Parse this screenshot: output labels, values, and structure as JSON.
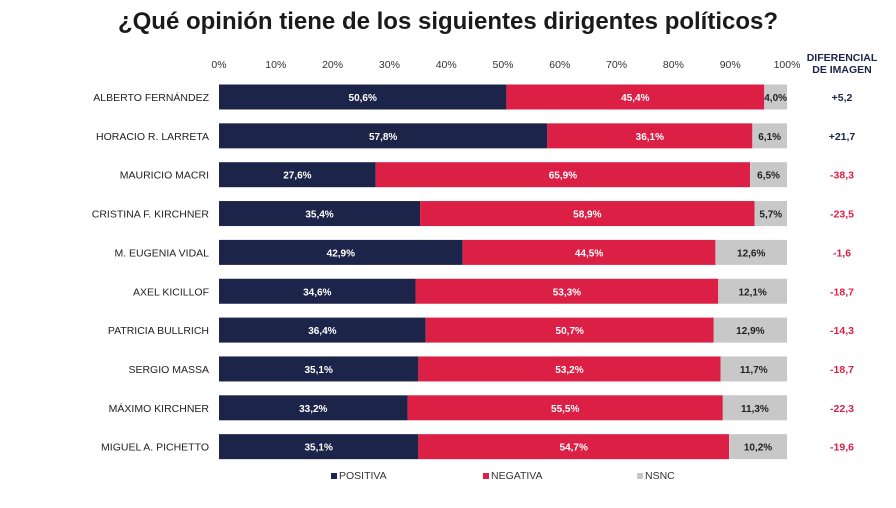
{
  "chart_data": {
    "type": "bar",
    "orientation": "horizontal",
    "stacked": true,
    "title": "¿Qué opinión tiene de los siguientes dirigentes políticos?",
    "xlim": [
      0,
      100
    ],
    "x_ticks": [
      "0%",
      "10%",
      "20%",
      "30%",
      "40%",
      "50%",
      "60%",
      "70%",
      "80%",
      "90%",
      "100%"
    ],
    "categories": [
      "ALBERTO FERNÁNDEZ",
      "HORACIO R. LARRETA",
      "MAURICIO MACRI",
      "CRISTINA F. KIRCHNER",
      "M. EUGENIA VIDAL",
      "AXEL KICILLOF",
      "PATRICIA BULLRICH",
      "SERGIO MASSA",
      "MÁXIMO KIRCHNER",
      "MIGUEL A. PICHETTO"
    ],
    "series": [
      {
        "name": "POSITIVA",
        "color": "#1c2449",
        "values": [
          50.6,
          57.8,
          27.6,
          35.4,
          42.9,
          34.6,
          36.4,
          35.1,
          33.2,
          35.1
        ],
        "labels": [
          "50,6%",
          "57,8%",
          "27,6%",
          "35,4%",
          "42,9%",
          "34,6%",
          "36,4%",
          "35,1%",
          "33,2%",
          "35,1%"
        ]
      },
      {
        "name": "NEGATIVA",
        "color": "#dc1f45",
        "values": [
          45.4,
          36.1,
          65.9,
          58.9,
          44.5,
          53.3,
          50.7,
          53.2,
          55.5,
          54.7
        ],
        "labels": [
          "45,4%",
          "36,1%",
          "65,9%",
          "58,9%",
          "44,5%",
          "53,3%",
          "50,7%",
          "53,2%",
          "55,5%",
          "54,7%"
        ]
      },
      {
        "name": "NSNC",
        "color": "#c8c8c8",
        "values": [
          4.0,
          6.1,
          6.5,
          5.7,
          12.6,
          12.1,
          12.9,
          11.7,
          11.3,
          10.2
        ],
        "labels": [
          "4,0%",
          "6,1%",
          "6,5%",
          "5,7%",
          "12,6%",
          "12,1%",
          "12,9%",
          "11,7%",
          "11,3%",
          "10,2%"
        ]
      }
    ],
    "differential": {
      "header": [
        "DIFERENCIAL",
        "DE IMAGEN"
      ],
      "values": [
        "+5,2",
        "+21,7",
        "-38,3",
        "-23,5",
        "-1,6",
        "-18,7",
        "-14,3",
        "-18,7",
        "-22,3",
        "-19,6"
      ],
      "positive_color": "#1c2449",
      "negative_color": "#dc1f45"
    },
    "legend": "bottom",
    "grid": false
  }
}
